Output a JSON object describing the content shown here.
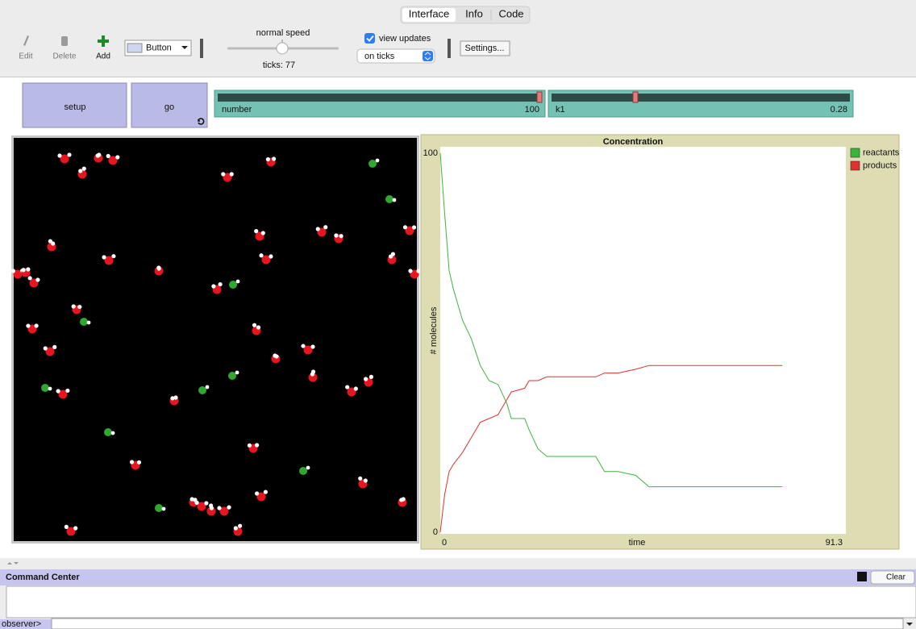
{
  "tabs": [
    "Interface",
    "Info",
    "Code"
  ],
  "toolbar": {
    "edit": "Edit",
    "delete": "Delete",
    "add": "Add",
    "widget_type": "Button",
    "speed_label": "normal speed",
    "ticks": "ticks: 77",
    "view_updates": "view updates",
    "update_mode": "on ticks",
    "settings": "Settings..."
  },
  "buttons": [
    "setup",
    "go"
  ],
  "sliders": [
    {
      "name": "number",
      "value": 100
    },
    {
      "name": "k1",
      "value": 0.28
    }
  ],
  "chart_data": {
    "type": "line",
    "title": "Concentration",
    "x_label": "time",
    "y_label": "# molecules",
    "x": [
      0,
      1,
      2,
      3,
      5,
      7,
      9,
      11,
      13,
      15,
      16,
      19,
      20,
      22,
      24,
      30,
      35,
      37,
      40,
      44,
      47,
      50,
      60,
      70,
      77
    ],
    "series": [
      {
        "name": "reactants",
        "color": "#3cb43c",
        "values": [
          100,
          84,
          69,
          64,
          56,
          51,
          44,
          40,
          39,
          34,
          30,
          30,
          27,
          22,
          20,
          20,
          20,
          16,
          16,
          15,
          12,
          12,
          12,
          12,
          12
        ]
      },
      {
        "name": "products",
        "color": "#e03030",
        "values": [
          0,
          10,
          16,
          18,
          21,
          25,
          29,
          30,
          31,
          35,
          37,
          38,
          40,
          40,
          41,
          41,
          41,
          42,
          42,
          43,
          44,
          44,
          44,
          44,
          44
        ]
      }
    ],
    "xlim": [
      0,
      91.3
    ],
    "ylim": [
      0,
      100
    ],
    "xticks": [
      0,
      91.3
    ],
    "yticks": [
      0,
      100
    ],
    "legend": "right"
  },
  "command_center": {
    "title": "Command Center",
    "clear": "Clear",
    "prompt": "observer>"
  }
}
